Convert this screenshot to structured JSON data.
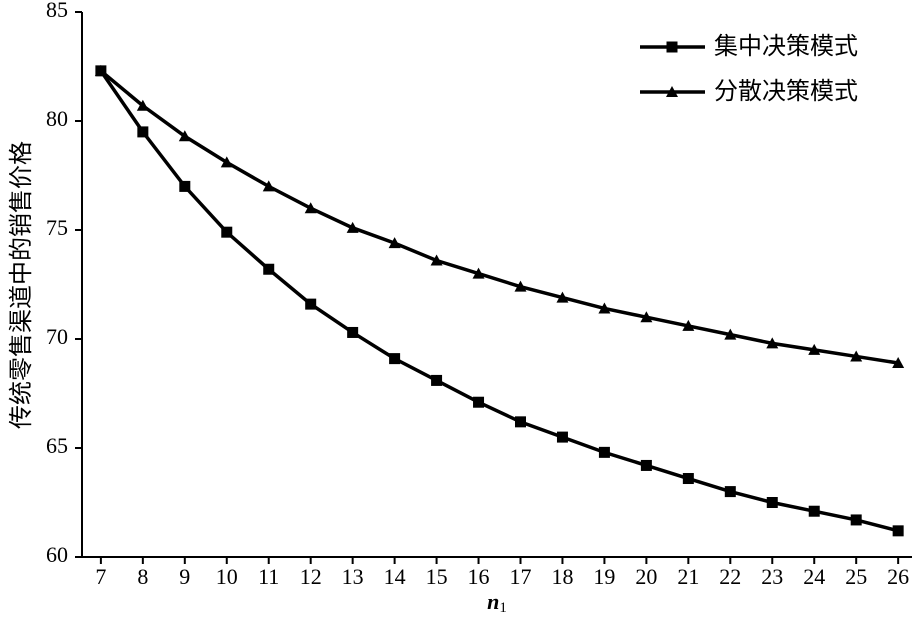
{
  "chart_data": {
    "type": "line",
    "ylabel": "传统零售渠道中的销售价格",
    "xlabel": "n1",
    "x": [
      7,
      8,
      9,
      10,
      11,
      12,
      13,
      14,
      15,
      16,
      17,
      18,
      19,
      20,
      21,
      22,
      23,
      24,
      25,
      26
    ],
    "series": [
      {
        "name": "集中决策模式",
        "color": "#000000",
        "marker": "square",
        "values": [
          82.3,
          79.5,
          77.0,
          74.9,
          73.2,
          71.6,
          70.3,
          69.1,
          68.1,
          67.1,
          66.2,
          65.5,
          64.8,
          64.2,
          63.6,
          63.0,
          62.5,
          62.1,
          61.7,
          61.2
        ]
      },
      {
        "name": "分散决策模式",
        "color": "#000000",
        "marker": "triangle",
        "values": [
          82.3,
          80.7,
          79.3,
          78.1,
          77.0,
          76.0,
          75.1,
          74.4,
          73.6,
          73.0,
          72.4,
          71.9,
          71.4,
          71.0,
          70.6,
          70.2,
          69.8,
          69.5,
          69.2,
          68.9
        ]
      }
    ],
    "xlim": [
      6.55,
      26.33
    ],
    "xticks": [
      7,
      8,
      9,
      10,
      11,
      12,
      13,
      14,
      15,
      16,
      17,
      18,
      19,
      20,
      21,
      22,
      23,
      24,
      25,
      26
    ],
    "ylim": [
      60,
      85
    ],
    "yticks": [
      60,
      65,
      70,
      75,
      80,
      85
    ],
    "grid": false,
    "legend": "upper right"
  }
}
